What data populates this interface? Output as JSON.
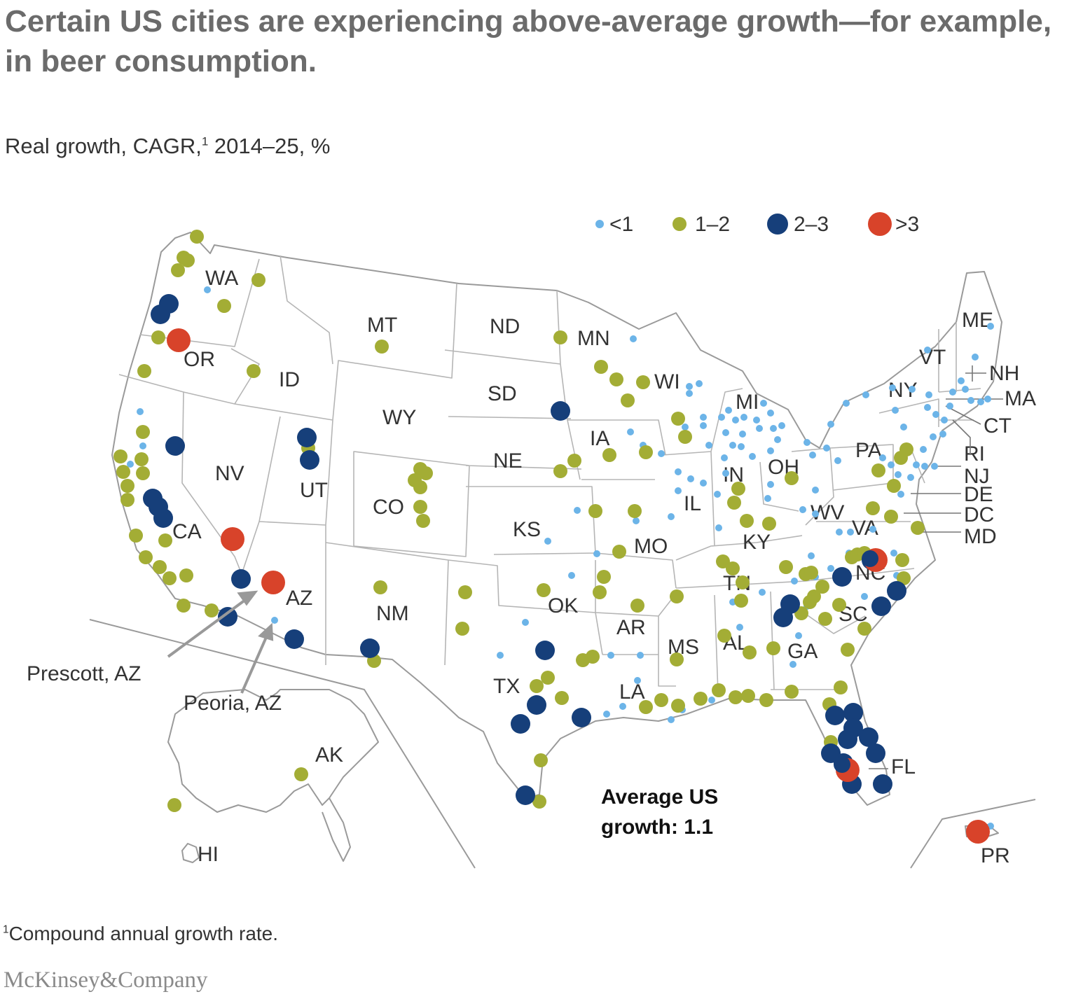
{
  "title": "Certain US cities are experiencing above-average growth—for example, in beer consumption.",
  "subtitle": "Real growth, CAGR,",
  "subtitle_sup": "1",
  "subtitle_rest": " 2014–25, %",
  "legend": [
    {
      "label": "<1",
      "color": "#6cb4e8",
      "size": "small"
    },
    {
      "label": "1–2",
      "color": "#a3ad35",
      "size": "medium"
    },
    {
      "label": "2–3",
      "color": "#163f7a",
      "size": "large"
    },
    {
      "label": ">3",
      "color": "#d8432a",
      "size": "largest"
    }
  ],
  "average_label_line1": "Average US",
  "average_label_line2": "growth: 1.1",
  "callouts": {
    "prescott": "Prescott, AZ",
    "peoria": "Peoria, AZ"
  },
  "footnote_sup": "1",
  "footnote": "Compound annual growth rate.",
  "brand": "McKinsey&Company",
  "states": [
    "WA",
    "OR",
    "CA",
    "NV",
    "ID",
    "MT",
    "WY",
    "UT",
    "AZ",
    "CO",
    "NM",
    "ND",
    "SD",
    "NE",
    "KS",
    "OK",
    "TX",
    "MN",
    "IA",
    "MO",
    "AR",
    "LA",
    "WI",
    "IL",
    "MI",
    "IN",
    "OH",
    "KY",
    "TN",
    "MS",
    "AL",
    "GA",
    "FL",
    "SC",
    "NC",
    "VA",
    "WV",
    "PA",
    "NY",
    "VT",
    "ME",
    "NH",
    "MA",
    "CT",
    "RI",
    "NJ",
    "DE",
    "DC",
    "MD",
    "AK",
    "HI",
    "PR"
  ]
}
